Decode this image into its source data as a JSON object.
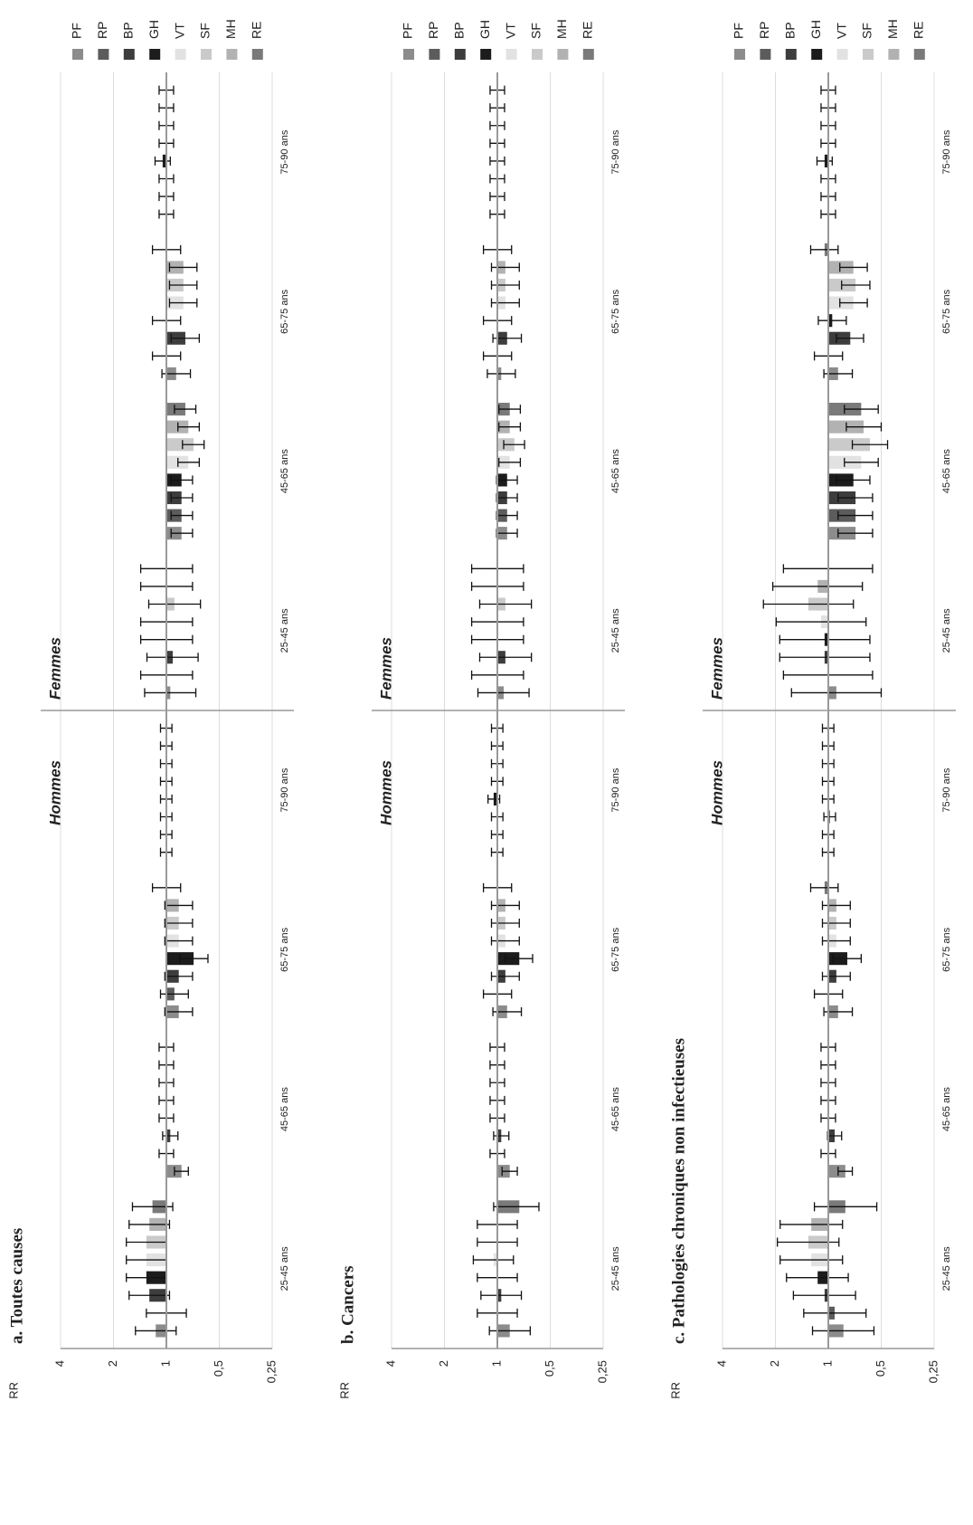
{
  "chart_data": [
    {
      "type": "bar",
      "title": "a. Toutes causes",
      "ylabel": "RR",
      "log_scale": true,
      "grid": true,
      "bar_base": 1,
      "legend": "right",
      "sexes": [
        "Hommes",
        "Femmes"
      ],
      "categories": [
        "25-45 ans",
        "45-65 ans",
        "65-75 ans",
        "75-90 ans",
        "25-45 ans",
        "45-65 ans",
        "65-75 ans",
        "75-90 ans"
      ],
      "ylim": [
        0.25,
        4
      ],
      "yticks": [
        {
          "value": 0.25,
          "label": "0,25"
        },
        {
          "value": 0.5,
          "label": "0,5"
        },
        1,
        2,
        4
      ],
      "series": [
        {
          "name": "PF",
          "color": "#8c8c8c",
          "values": [
            1.15,
            0.82,
            0.85,
            1,
            0.95,
            0.82,
            0.88,
            1
          ],
          "lower": [
            0.88,
            0.75,
            0.71,
            0.93,
            0.68,
            0.71,
            0.73,
            0.91
          ],
          "upper": [
            1.5,
            0.9,
            1.02,
            1.08,
            1.33,
            0.94,
            1.06,
            1.1
          ]
        },
        {
          "name": "RP",
          "color": "#5c5c5c",
          "values": [
            1,
            1,
            0.9,
            1,
            1,
            0.82,
            1,
            1
          ],
          "lower": [
            0.77,
            0.91,
            0.75,
            0.93,
            0.71,
            0.71,
            0.83,
            0.91
          ],
          "upper": [
            1.3,
            1.1,
            1.08,
            1.08,
            1.4,
            0.94,
            1.2,
            1.1
          ]
        },
        {
          "name": "BP",
          "color": "#3d3d3d",
          "values": [
            1.25,
            0.95,
            0.85,
            1,
            0.92,
            0.82,
            0.78,
            1
          ],
          "lower": [
            0.96,
            0.86,
            0.71,
            0.93,
            0.66,
            0.71,
            0.65,
            0.91
          ],
          "upper": [
            1.63,
            1.05,
            1.02,
            1.08,
            1.29,
            0.94,
            0.94,
            1.1
          ]
        },
        {
          "name": "GH",
          "color": "#1c1c1c",
          "values": [
            1.3,
            1,
            0.7,
            1,
            1,
            0.82,
            1,
            1.05
          ],
          "lower": [
            1,
            0.91,
            0.58,
            0.93,
            0.71,
            0.71,
            0.83,
            0.95
          ],
          "upper": [
            1.69,
            1.1,
            0.84,
            1.08,
            1.4,
            0.94,
            1.2,
            1.16
          ]
        },
        {
          "name": "VT",
          "color": "#e2e2e2",
          "values": [
            1.3,
            1,
            0.85,
            1,
            1,
            0.75,
            0.8,
            1
          ],
          "lower": [
            1,
            0.91,
            0.71,
            0.93,
            0.71,
            0.65,
            0.67,
            0.91
          ],
          "upper": [
            1.69,
            1.1,
            1.02,
            1.08,
            1.4,
            0.86,
            0.96,
            1.1
          ]
        },
        {
          "name": "SF",
          "color": "#cacaca",
          "values": [
            1.3,
            1,
            0.85,
            1,
            0.9,
            0.7,
            0.8,
            1
          ],
          "lower": [
            1,
            0.91,
            0.71,
            0.93,
            0.64,
            0.61,
            0.67,
            0.91
          ],
          "upper": [
            1.69,
            1.1,
            1.02,
            1.08,
            1.26,
            0.81,
            0.96,
            1.1
          ]
        },
        {
          "name": "MH",
          "color": "#b2b2b2",
          "values": [
            1.25,
            1,
            0.85,
            1,
            1,
            0.75,
            0.8,
            1
          ],
          "lower": [
            0.96,
            0.91,
            0.71,
            0.93,
            0.71,
            0.65,
            0.67,
            0.91
          ],
          "upper": [
            1.63,
            1.1,
            1.02,
            1.08,
            1.4,
            0.86,
            0.96,
            1.1
          ]
        },
        {
          "name": "RE",
          "color": "#7a7a7a",
          "values": [
            1.2,
            1,
            1,
            1,
            1,
            0.78,
            1,
            1
          ],
          "lower": [
            0.92,
            0.91,
            0.83,
            0.93,
            0.71,
            0.68,
            0.83,
            0.91
          ],
          "upper": [
            1.56,
            1.1,
            1.2,
            1.08,
            1.4,
            0.9,
            1.2,
            1.1
          ]
        }
      ]
    },
    {
      "type": "bar",
      "title": "b. Cancers",
      "ylabel": "RR",
      "log_scale": true,
      "grid": true,
      "bar_base": 1,
      "legend": "right",
      "sexes": [
        "Hommes",
        "Femmes"
      ],
      "categories": [
        "25-45 ans",
        "45-65 ans",
        "65-75 ans",
        "75-90 ans",
        "25-45 ans",
        "45-65 ans",
        "65-75 ans",
        "75-90 ans"
      ],
      "ylim": [
        0.25,
        4
      ],
      "yticks": [
        {
          "value": 0.25,
          "label": "0,25"
        },
        {
          "value": 0.5,
          "label": "0,5"
        },
        1,
        2,
        4
      ],
      "series": [
        {
          "name": "PF",
          "color": "#8c8c8c",
          "values": [
            0.85,
            0.85,
            0.88,
            1,
            0.92,
            0.88,
            0.95,
            1
          ],
          "lower": [
            0.65,
            0.77,
            0.73,
            0.93,
            0.66,
            0.77,
            0.79,
            0.91
          ],
          "upper": [
            1.11,
            0.94,
            1.06,
            1.08,
            1.29,
            1.01,
            1.14,
            1.1
          ]
        },
        {
          "name": "RP",
          "color": "#5c5c5c",
          "values": [
            1,
            1,
            1,
            1,
            1,
            0.88,
            1,
            1
          ],
          "lower": [
            0.77,
            0.91,
            0.83,
            0.93,
            0.71,
            0.77,
            0.83,
            0.91
          ],
          "upper": [
            1.3,
            1.1,
            1.2,
            1.08,
            1.4,
            1.01,
            1.2,
            1.1
          ]
        },
        {
          "name": "BP",
          "color": "#3d3d3d",
          "values": [
            0.95,
            0.95,
            0.9,
            1,
            0.9,
            0.88,
            0.88,
            1
          ],
          "lower": [
            0.73,
            0.86,
            0.75,
            0.93,
            0.64,
            0.77,
            0.73,
            0.91
          ],
          "upper": [
            1.24,
            1.05,
            1.08,
            1.08,
            1.26,
            1.01,
            1.06,
            1.1
          ]
        },
        {
          "name": "GH",
          "color": "#1c1c1c",
          "values": [
            1,
            1,
            0.75,
            1.05,
            1,
            0.88,
            1,
            1
          ],
          "lower": [
            0.77,
            0.91,
            0.63,
            0.97,
            0.71,
            0.77,
            0.83,
            0.91
          ],
          "upper": [
            1.3,
            1.1,
            0.9,
            1.13,
            1.4,
            1.01,
            1.2,
            1.1
          ]
        },
        {
          "name": "VT",
          "color": "#e2e2e2",
          "values": [
            1.05,
            1,
            0.9,
            1,
            1,
            0.85,
            0.9,
            1
          ],
          "lower": [
            0.81,
            0.91,
            0.75,
            0.93,
            0.71,
            0.74,
            0.75,
            0.91
          ],
          "upper": [
            1.37,
            1.1,
            1.08,
            1.08,
            1.4,
            0.98,
            1.08,
            1.1
          ]
        },
        {
          "name": "SF",
          "color": "#cacaca",
          "values": [
            1,
            1,
            0.9,
            1,
            0.9,
            0.8,
            0.9,
            1
          ],
          "lower": [
            0.77,
            0.91,
            0.75,
            0.93,
            0.64,
            0.7,
            0.75,
            0.91
          ],
          "upper": [
            1.3,
            1.1,
            1.08,
            1.08,
            1.26,
            0.92,
            1.08,
            1.1
          ]
        },
        {
          "name": "MH",
          "color": "#b2b2b2",
          "values": [
            1,
            1,
            0.9,
            1,
            1,
            0.85,
            0.9,
            1
          ],
          "lower": [
            0.77,
            0.91,
            0.75,
            0.93,
            0.71,
            0.74,
            0.75,
            0.91
          ],
          "upper": [
            1.3,
            1.1,
            1.08,
            1.08,
            1.4,
            0.98,
            1.08,
            1.1
          ]
        },
        {
          "name": "RE",
          "color": "#7a7a7a",
          "values": [
            0.75,
            1,
            1,
            1,
            1,
            0.85,
            1,
            1
          ],
          "lower": [
            0.58,
            0.91,
            0.83,
            0.93,
            0.71,
            0.74,
            0.83,
            0.91
          ],
          "upper": [
            1.05,
            1.1,
            1.2,
            1.08,
            1.4,
            0.98,
            1.2,
            1.1
          ]
        }
      ]
    },
    {
      "type": "bar",
      "title": "c. Pathologies chroniques non infectieuses",
      "ylabel": "RR",
      "log_scale": true,
      "grid": true,
      "bar_base": 1,
      "legend": "right",
      "sexes": [
        "Hommes",
        "Femmes"
      ],
      "categories": [
        "25-45 ans",
        "45-65 ans",
        "65-75 ans",
        "75-90 ans",
        "25-45 ans",
        "45-65 ans",
        "65-75 ans",
        "75-90 ans"
      ],
      "ylim": [
        0.25,
        4
      ],
      "yticks": [
        {
          "value": 0.25,
          "label": "0,25"
        },
        {
          "value": 0.5,
          "label": "0,5"
        },
        1,
        2,
        4
      ],
      "series": [
        {
          "name": "PF",
          "color": "#8c8c8c",
          "values": [
            0.82,
            0.8,
            0.88,
            1,
            0.9,
            0.7,
            0.88,
            1
          ],
          "lower": [
            0.55,
            0.73,
            0.73,
            0.93,
            0.5,
            0.56,
            0.73,
            0.91
          ],
          "upper": [
            1.23,
            0.88,
            1.06,
            1.08,
            1.62,
            0.88,
            1.06,
            1.1
          ]
        },
        {
          "name": "RP",
          "color": "#5c5c5c",
          "values": [
            0.92,
            1,
            1,
            1,
            1,
            0.7,
            1,
            1
          ],
          "lower": [
            0.61,
            0.91,
            0.83,
            0.93,
            0.56,
            0.56,
            0.83,
            0.91
          ],
          "upper": [
            1.38,
            1.1,
            1.2,
            1.08,
            1.8,
            0.88,
            1.2,
            1.1
          ]
        },
        {
          "name": "BP",
          "color": "#3d3d3d",
          "values": [
            1.05,
            0.92,
            0.9,
            0.98,
            1.05,
            0.7,
            0.75,
            1
          ],
          "lower": [
            0.7,
            0.84,
            0.75,
            0.91,
            0.58,
            0.56,
            0.63,
            0.91
          ],
          "upper": [
            1.58,
            1.01,
            1.08,
            1.06,
            1.89,
            0.88,
            0.9,
            1.1
          ]
        },
        {
          "name": "GH",
          "color": "#1c1c1c",
          "values": [
            1.15,
            1,
            0.78,
            1,
            1.05,
            0.72,
            0.95,
            1.05
          ],
          "lower": [
            0.77,
            0.91,
            0.65,
            0.93,
            0.58,
            0.58,
            0.79,
            0.95
          ],
          "upper": [
            1.73,
            1.1,
            0.94,
            1.08,
            1.89,
            0.9,
            1.14,
            1.16
          ]
        },
        {
          "name": "VT",
          "color": "#e2e2e2",
          "values": [
            1.25,
            1,
            0.9,
            1,
            1.1,
            0.65,
            0.72,
            1
          ],
          "lower": [
            0.83,
            0.91,
            0.75,
            0.93,
            0.61,
            0.52,
            0.6,
            0.91
          ],
          "upper": [
            1.88,
            1.1,
            1.08,
            1.08,
            1.98,
            0.81,
            0.86,
            1.1
          ]
        },
        {
          "name": "SF",
          "color": "#cacaca",
          "values": [
            1.3,
            1,
            0.9,
            1,
            1.3,
            0.58,
            0.7,
            1
          ],
          "lower": [
            0.87,
            0.91,
            0.75,
            0.93,
            0.72,
            0.46,
            0.58,
            0.91
          ],
          "upper": [
            1.95,
            1.1,
            1.08,
            1.08,
            2.34,
            0.73,
            0.84,
            1.1
          ]
        },
        {
          "name": "MH",
          "color": "#b2b2b2",
          "values": [
            1.25,
            1,
            0.9,
            1,
            1.15,
            0.63,
            0.72,
            1
          ],
          "lower": [
            0.83,
            0.91,
            0.75,
            0.93,
            0.64,
            0.5,
            0.6,
            0.91
          ],
          "upper": [
            1.88,
            1.1,
            1.08,
            1.08,
            2.07,
            0.79,
            0.86,
            1.1
          ]
        },
        {
          "name": "RE",
          "color": "#7a7a7a",
          "values": [
            0.8,
            1,
            1.05,
            1,
            1,
            0.65,
            1.05,
            1
          ],
          "lower": [
            0.53,
            0.91,
            0.88,
            0.93,
            0.56,
            0.52,
            0.88,
            0.91
          ],
          "upper": [
            1.2,
            1.1,
            1.26,
            1.08,
            1.8,
            0.81,
            1.26,
            1.1
          ]
        }
      ]
    }
  ]
}
